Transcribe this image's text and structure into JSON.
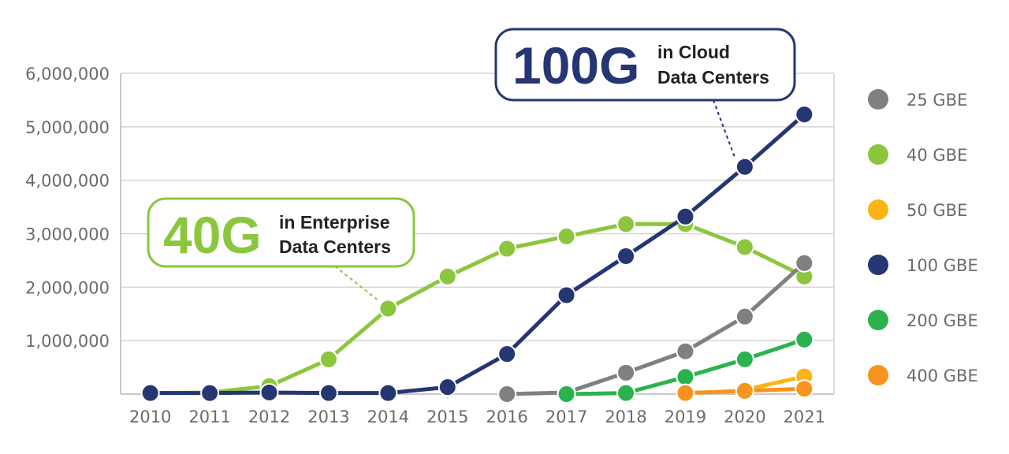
{
  "chart_data": {
    "type": "line",
    "title": "",
    "xlabel": "",
    "ylabel": "",
    "x": [
      "2010",
      "2011",
      "2012",
      "2013",
      "2014",
      "2015",
      "2016",
      "2017",
      "2018",
      "2019",
      "2020",
      "2021"
    ],
    "ylim": [
      0,
      6000000
    ],
    "y_ticks": [
      "1,000,000",
      "2,000,000",
      "3,000,000",
      "4,000,000",
      "5,000,000",
      "6,000,000"
    ],
    "grid": true,
    "legend_position": "right",
    "series": [
      {
        "name": "25 GBE",
        "color": "#808080",
        "values": [
          null,
          null,
          null,
          null,
          null,
          null,
          0,
          30000,
          400000,
          800000,
          1450000,
          2450000
        ]
      },
      {
        "name": "40 GBE",
        "color": "#8cc63f",
        "values": [
          20000,
          30000,
          150000,
          650000,
          1600000,
          2200000,
          2720000,
          2950000,
          3180000,
          3180000,
          2750000,
          2200000
        ]
      },
      {
        "name": "50 GBE",
        "color": "#fbb415",
        "values": [
          null,
          null,
          null,
          null,
          null,
          null,
          null,
          null,
          null,
          null,
          80000,
          330000
        ]
      },
      {
        "name": "100 GBE",
        "color": "#263673",
        "values": [
          20000,
          20000,
          30000,
          20000,
          20000,
          130000,
          750000,
          1850000,
          2580000,
          3320000,
          4250000,
          5230000
        ]
      },
      {
        "name": "200 GBE",
        "color": "#2bb24c",
        "values": [
          null,
          null,
          null,
          null,
          null,
          null,
          null,
          0,
          20000,
          320000,
          650000,
          1020000
        ]
      },
      {
        "name": "400 GBE",
        "color": "#f7941d",
        "values": [
          null,
          null,
          null,
          null,
          null,
          null,
          null,
          null,
          null,
          20000,
          60000,
          100000
        ]
      }
    ],
    "annotations": [
      {
        "big": "100G",
        "small_line1": "in Cloud",
        "small_line2": "Data Centers",
        "color": "#263673",
        "series": "100 GBE",
        "x": "2020"
      },
      {
        "big": "40G",
        "small_line1": "in Enterprise",
        "small_line2": "Data Centers",
        "color": "#8cc63f",
        "series": "40 GBE",
        "x": "2014"
      }
    ]
  }
}
